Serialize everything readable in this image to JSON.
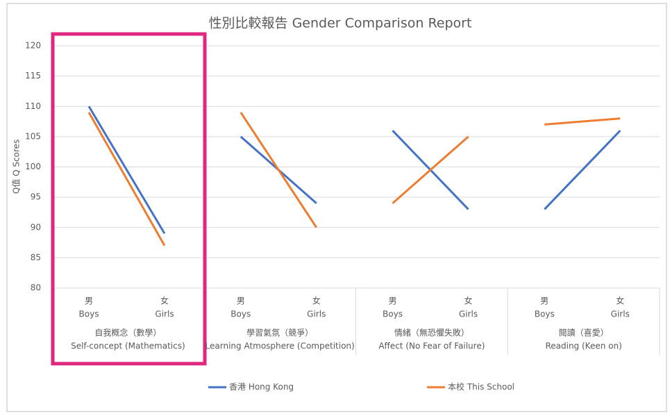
{
  "chart_data": {
    "type": "line",
    "title": "性別比較報告 Gender Comparison Report",
    "y_label": "Q值 Q Scores",
    "ylim": [
      80,
      120
    ],
    "yticks": [
      80,
      85,
      90,
      95,
      100,
      105,
      110,
      115,
      120
    ],
    "grid": true,
    "groups": [
      {
        "name": "自我概念（數學）",
        "name_en": "Self-concept (Mathematics)",
        "categories": [
          {
            "zh": "男",
            "en": "Boys"
          },
          {
            "zh": "女",
            "en": "Girls"
          }
        ]
      },
      {
        "name": "學習氣氛（競爭）",
        "name_en": "Learning Atmosphere (Competition)",
        "categories": [
          {
            "zh": "男",
            "en": "Boys"
          },
          {
            "zh": "女",
            "en": "Girls"
          }
        ]
      },
      {
        "name": "情緒（無恐懼失敗）",
        "name_en": "Affect (No Fear of Failure)",
        "categories": [
          {
            "zh": "男",
            "en": "Boys"
          },
          {
            "zh": "女",
            "en": "Girls"
          }
        ]
      },
      {
        "name": "閱讀（喜愛）",
        "name_en": "Reading (Keen on)",
        "categories": [
          {
            "zh": "男",
            "en": "Boys"
          },
          {
            "zh": "女",
            "en": "Girls"
          }
        ]
      }
    ],
    "series": [
      {
        "name": "香港 Hong Kong",
        "color": "#4472c4",
        "values": [
          [
            110,
            89
          ],
          [
            105,
            94
          ],
          [
            106,
            93
          ],
          [
            93,
            106
          ]
        ]
      },
      {
        "name": "本校 This School",
        "color": "#ed7d31",
        "values": [
          [
            109,
            87
          ],
          [
            109,
            90
          ],
          [
            94,
            105
          ],
          [
            107,
            108
          ]
        ]
      }
    ]
  }
}
